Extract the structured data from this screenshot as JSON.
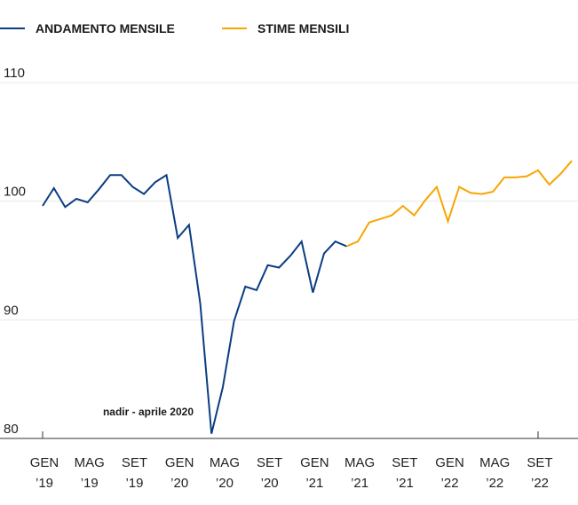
{
  "chart_data": {
    "type": "line",
    "title": "",
    "xlabel": "",
    "ylabel": "",
    "ylim": [
      80,
      110
    ],
    "yticks": [
      80,
      90,
      100,
      110
    ],
    "grid": true,
    "legend_position": "top-left",
    "x_months": [
      "2019-01",
      "2019-02",
      "2019-03",
      "2019-04",
      "2019-05",
      "2019-06",
      "2019-07",
      "2019-08",
      "2019-09",
      "2019-10",
      "2019-11",
      "2019-12",
      "2020-01",
      "2020-02",
      "2020-03",
      "2020-04",
      "2020-05",
      "2020-06",
      "2020-07",
      "2020-08",
      "2020-09",
      "2020-10",
      "2020-11",
      "2020-12",
      "2021-01",
      "2021-02",
      "2021-03",
      "2021-04",
      "2021-05",
      "2021-06",
      "2021-07",
      "2021-08",
      "2021-09",
      "2021-10",
      "2021-11",
      "2021-12",
      "2022-01",
      "2022-02",
      "2022-03",
      "2022-04",
      "2022-05",
      "2022-06",
      "2022-07",
      "2022-08",
      "2022-09",
      "2022-10",
      "2022-11",
      "2022-12"
    ],
    "x_tick_labels": [
      {
        "month_index": 0,
        "line1": "GEN",
        "line2": "’19"
      },
      {
        "month_index": 4,
        "line1": "MAG",
        "line2": "’19"
      },
      {
        "month_index": 8,
        "line1": "SET",
        "line2": "’19"
      },
      {
        "month_index": 12,
        "line1": "GEN",
        "line2": "’20"
      },
      {
        "month_index": 16,
        "line1": "MAG",
        "line2": "’20"
      },
      {
        "month_index": 20,
        "line1": "SET",
        "line2": "’20"
      },
      {
        "month_index": 24,
        "line1": "GEN",
        "line2": "’21"
      },
      {
        "month_index": 28,
        "line1": "MAG",
        "line2": "’21"
      },
      {
        "month_index": 32,
        "line1": "SET",
        "line2": "’21"
      },
      {
        "month_index": 36,
        "line1": "GEN",
        "line2": "’22"
      },
      {
        "month_index": 40,
        "line1": "MAG",
        "line2": "’22"
      },
      {
        "month_index": 44,
        "line1": "SET",
        "line2": "’22"
      }
    ],
    "axis_tick_marks_at": [
      0,
      44
    ],
    "series": [
      {
        "name": "ANDAMENTO MENSILE",
        "color": "#0b3d82",
        "start_index": 0,
        "values": [
          99.6,
          101.1,
          99.5,
          100.2,
          99.9,
          101.0,
          102.2,
          102.2,
          101.2,
          100.6,
          101.6,
          102.2,
          96.9,
          98.0,
          91.4,
          80.4,
          84.3,
          89.9,
          92.8,
          92.5,
          94.6,
          94.4,
          95.4,
          96.6,
          92.3,
          95.6,
          96.6,
          96.2
        ]
      },
      {
        "name": "STIME MENSILI",
        "color": "#f7a600",
        "start_index": 27,
        "values": [
          96.2,
          96.6,
          98.2,
          98.5,
          98.8,
          99.6,
          98.8,
          100.1,
          101.2,
          98.3,
          101.2,
          100.7,
          100.6,
          100.8,
          102.0,
          102.0,
          102.1,
          102.6,
          101.4,
          102.3,
          103.4
        ]
      }
    ],
    "annotations": [
      {
        "text": "nadir - aprile 2020",
        "month_index": 15
      }
    ]
  }
}
